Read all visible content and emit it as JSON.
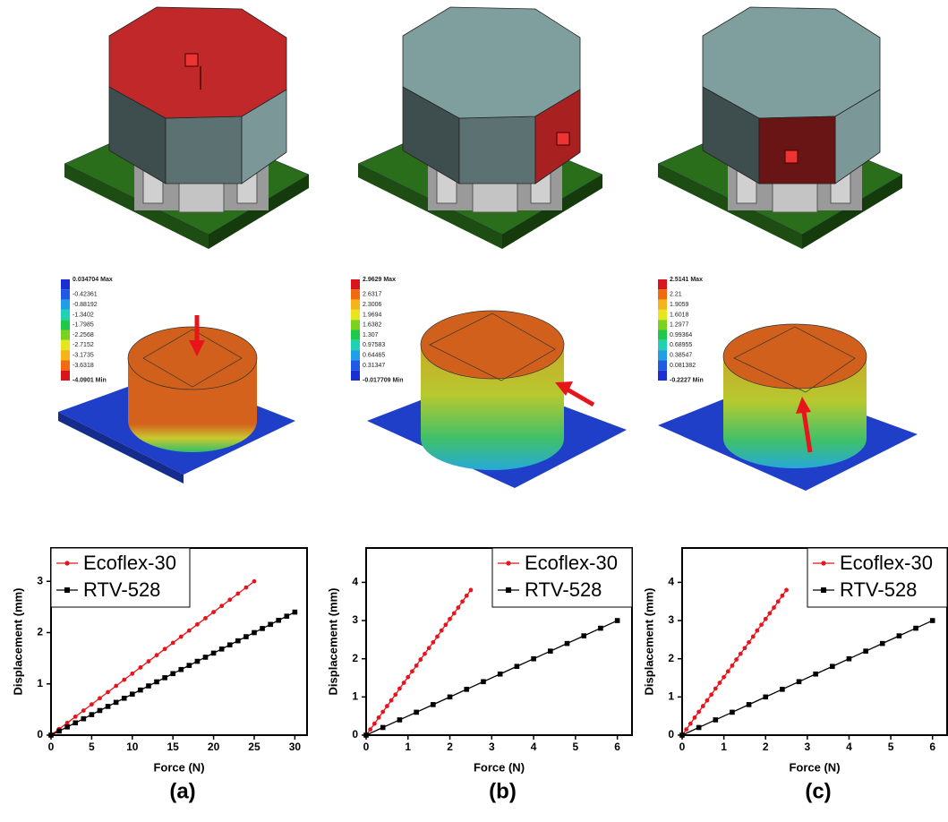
{
  "chart_data": [
    {
      "type": "line",
      "caption": "(a)",
      "x_label": "Force (N)",
      "y_label": "Displacement (mm)",
      "legend": "upper left",
      "xlim": [
        0,
        31.5
      ],
      "ylim": [
        0,
        3.65
      ],
      "xticks": [
        0,
        5,
        10,
        15,
        20,
        25,
        30
      ],
      "yticks": [
        0,
        1,
        2,
        3
      ],
      "series": [
        {
          "name": "Ecoflex-30",
          "color": "#e8141c",
          "marker": "circle",
          "x": [
            0,
            1,
            2,
            3,
            4,
            5,
            6,
            7,
            8,
            9,
            10,
            11,
            12,
            13,
            14,
            15,
            16,
            17,
            18,
            19,
            20,
            21,
            22,
            23,
            24,
            25
          ],
          "values": [
            0,
            0.12,
            0.24,
            0.36,
            0.48,
            0.6,
            0.72,
            0.84,
            0.96,
            1.08,
            1.2,
            1.32,
            1.44,
            1.56,
            1.68,
            1.8,
            1.92,
            2.04,
            2.16,
            2.28,
            2.4,
            2.52,
            2.64,
            2.76,
            2.88,
            3
          ]
        },
        {
          "name": "RTV-528",
          "color": "#000000",
          "marker": "square",
          "x": [
            0,
            1,
            2,
            3,
            4,
            5,
            6,
            7,
            8,
            9,
            10,
            11,
            12,
            13,
            14,
            15,
            16,
            17,
            18,
            19,
            20,
            21,
            22,
            23,
            24,
            25,
            26,
            27,
            28,
            29,
            30
          ],
          "values": [
            0,
            0.08,
            0.16,
            0.24,
            0.32,
            0.4,
            0.48,
            0.56,
            0.64,
            0.72,
            0.8,
            0.88,
            0.96,
            1.04,
            1.12,
            1.2,
            1.28,
            1.36,
            1.44,
            1.52,
            1.6,
            1.68,
            1.76,
            1.84,
            1.92,
            2,
            2.08,
            2.16,
            2.24,
            2.32,
            2.4
          ]
        }
      ]
    },
    {
      "type": "line",
      "caption": "(b)",
      "x_label": "Force (N)",
      "y_label": "Displacement (mm)",
      "legend": "upper right",
      "xlim": [
        0,
        6.35
      ],
      "ylim": [
        0,
        4.9
      ],
      "xticks": [
        0,
        1,
        2,
        3,
        4,
        5,
        6
      ],
      "yticks": [
        0,
        1,
        2,
        3,
        4
      ],
      "series": [
        {
          "name": "Ecoflex-30",
          "color": "#e8141c",
          "marker": "circle",
          "x": [
            0,
            0.1,
            0.2,
            0.3,
            0.4,
            0.5,
            0.6,
            0.7,
            0.8,
            0.9,
            1,
            1.1,
            1.2,
            1.3,
            1.4,
            1.5,
            1.6,
            1.7,
            1.8,
            1.9,
            2,
            2.1,
            2.2,
            2.3,
            2.4,
            2.5
          ],
          "values": [
            0,
            0.15,
            0.3,
            0.46,
            0.61,
            0.76,
            0.91,
            1.06,
            1.22,
            1.37,
            1.52,
            1.67,
            1.82,
            1.98,
            2.13,
            2.28,
            2.43,
            2.58,
            2.74,
            2.89,
            3.04,
            3.19,
            3.34,
            3.5,
            3.65,
            3.8
          ]
        },
        {
          "name": "RTV-528",
          "color": "#000000",
          "marker": "square",
          "x": [
            0,
            0.4,
            0.8,
            1.2,
            1.6,
            2,
            2.4,
            2.8,
            3.2,
            3.6,
            4,
            4.4,
            4.8,
            5.2,
            5.6,
            6
          ],
          "values": [
            0,
            0.2,
            0.4,
            0.6,
            0.8,
            1,
            1.2,
            1.4,
            1.6,
            1.8,
            2,
            2.2,
            2.4,
            2.6,
            2.8,
            3
          ]
        }
      ]
    },
    {
      "type": "line",
      "caption": "(c)",
      "x_label": "Force (N)",
      "y_label": "Displacement (mm)",
      "legend": "upper right",
      "xlim": [
        0,
        6.35
      ],
      "ylim": [
        0,
        4.9
      ],
      "xticks": [
        0,
        1,
        2,
        3,
        4,
        5,
        6
      ],
      "yticks": [
        0,
        1,
        2,
        3,
        4
      ],
      "series": [
        {
          "name": "Ecoflex-30",
          "color": "#e8141c",
          "marker": "circle",
          "x": [
            0,
            0.1,
            0.2,
            0.3,
            0.4,
            0.5,
            0.6,
            0.7,
            0.8,
            0.9,
            1,
            1.1,
            1.2,
            1.3,
            1.4,
            1.5,
            1.6,
            1.7,
            1.8,
            1.9,
            2,
            2.1,
            2.2,
            2.3,
            2.4,
            2.5
          ],
          "values": [
            0,
            0.15,
            0.3,
            0.46,
            0.61,
            0.76,
            0.91,
            1.06,
            1.22,
            1.37,
            1.52,
            1.67,
            1.82,
            1.98,
            2.13,
            2.28,
            2.43,
            2.58,
            2.74,
            2.89,
            3.04,
            3.19,
            3.34,
            3.5,
            3.65,
            3.8
          ]
        },
        {
          "name": "RTV-528",
          "color": "#000000",
          "marker": "square",
          "x": [
            0,
            0.4,
            0.8,
            1.2,
            1.6,
            2,
            2.4,
            2.8,
            3.2,
            3.6,
            4,
            4.4,
            4.8,
            5.2,
            5.6,
            6
          ],
          "values": [
            0,
            0.2,
            0.4,
            0.6,
            0.8,
            1,
            1.2,
            1.4,
            1.6,
            1.8,
            2,
            2.2,
            2.4,
            2.6,
            2.8,
            3
          ]
        }
      ]
    }
  ],
  "simulations": [
    {
      "colorbar": [
        "0.034704 Max",
        "-0.42361",
        "-0.88192",
        "-1.3402",
        "-1.7985",
        "-2.2568",
        "-2.7152",
        "-3.1735",
        "-3.6318",
        "-4.0901 Min"
      ]
    },
    {
      "colorbar": [
        "2.9629 Max",
        "2.6317",
        "2.3006",
        "1.9694",
        "1.6382",
        "1.307",
        "0.97583",
        "0.64465",
        "0.31347",
        "-0.017709 Min"
      ]
    },
    {
      "colorbar": [
        "2.5141 Max",
        "2.21",
        "1.9059",
        "1.6018",
        "1.2977",
        "0.99364",
        "0.68955",
        "0.38547",
        "0.081382",
        "-0.2227 Min"
      ]
    }
  ]
}
